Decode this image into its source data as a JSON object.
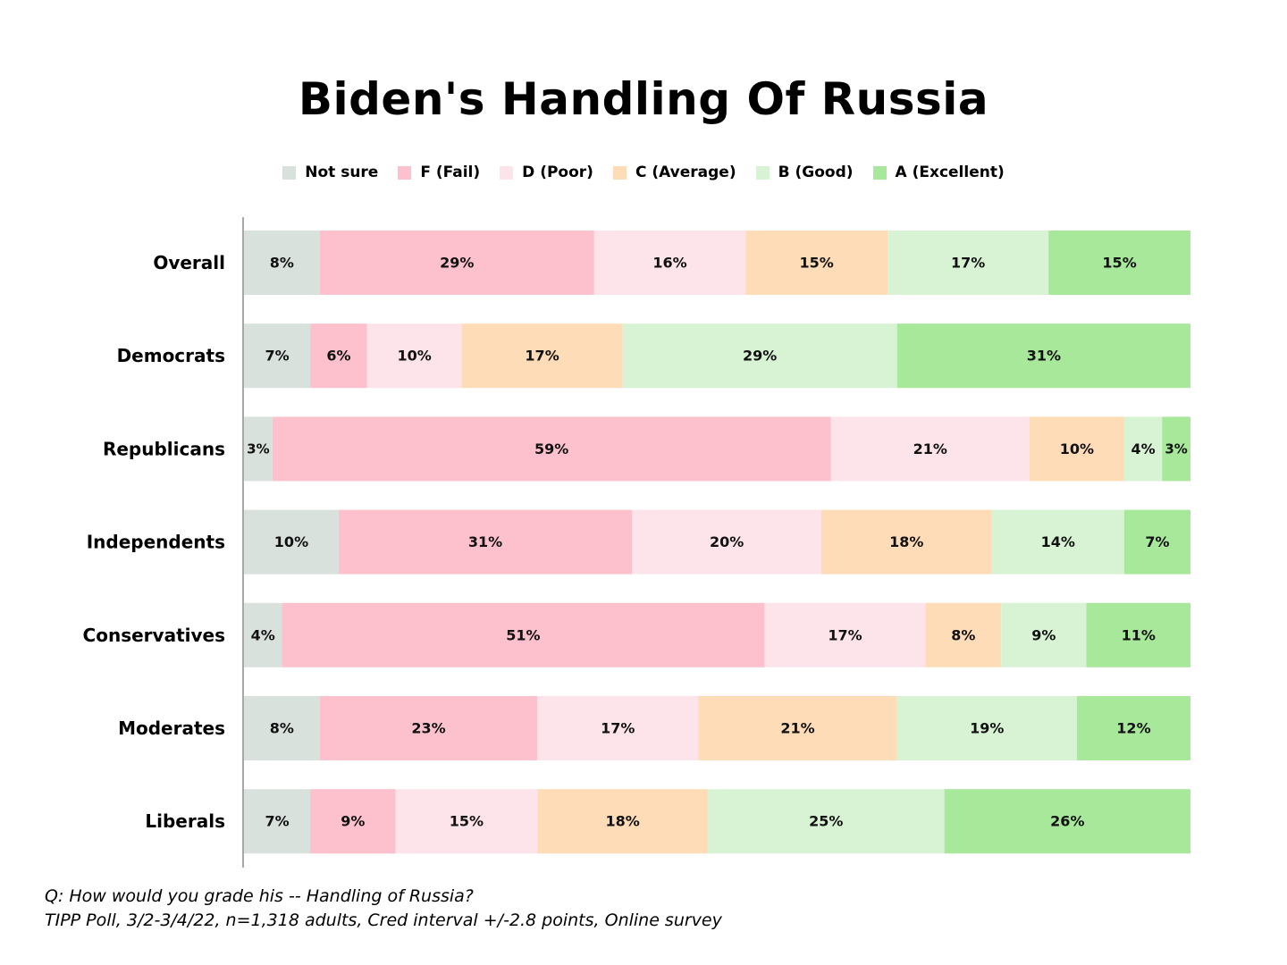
{
  "chart_data": {
    "type": "bar",
    "orientation": "horizontal",
    "stacked": true,
    "title": "Biden's Handling Of Russia",
    "legend_position": "top-center",
    "categories": [
      "Overall",
      "Democrats",
      "Republicans",
      "Independents",
      "Conservatives",
      "Moderates",
      "Liberals"
    ],
    "series": [
      {
        "name": "Not sure",
        "color": "#d9e1dd",
        "values": [
          8,
          7,
          3,
          10,
          4,
          8,
          7
        ]
      },
      {
        "name": "F (Fail)",
        "color": "#fdc0cd",
        "values": [
          29,
          6,
          59,
          31,
          51,
          23,
          9
        ]
      },
      {
        "name": "D (Poor)",
        "color": "#fde4ea",
        "values": [
          16,
          10,
          21,
          20,
          17,
          17,
          15
        ]
      },
      {
        "name": "C (Average)",
        "color": "#fedcb7",
        "values": [
          15,
          17,
          10,
          18,
          8,
          21,
          18
        ]
      },
      {
        "name": "B (Good)",
        "color": "#d8f3d4",
        "values": [
          17,
          29,
          4,
          14,
          9,
          19,
          25
        ]
      },
      {
        "name": "A (Excellent)",
        "color": "#a7e89a",
        "values": [
          15,
          31,
          3,
          7,
          11,
          12,
          26
        ]
      }
    ],
    "value_suffix": "%",
    "xlabel": "",
    "ylabel": ""
  },
  "footnote": {
    "question": "Q:  How would you grade his -- Handling of Russia?",
    "source": "TIPP Poll, 3/2-3/4/22, n=1,318 adults, Cred interval +/-2.8 points, Online survey"
  }
}
